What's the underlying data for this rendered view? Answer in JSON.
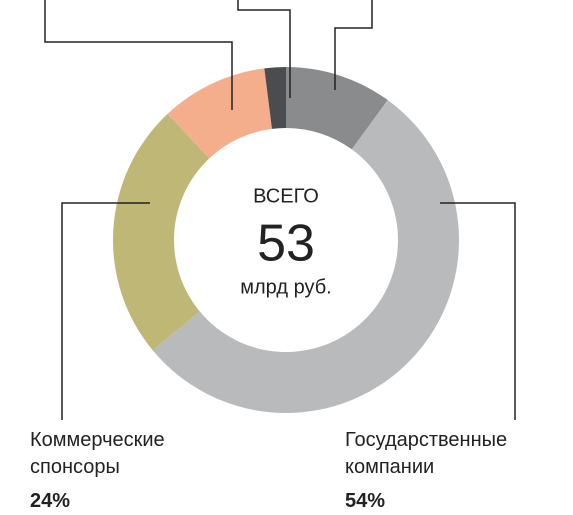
{
  "chart_data": {
    "type": "donut",
    "categories": [
      null,
      "Государственные компании",
      "Коммерческие спонсоры",
      null,
      null
    ],
    "values": [
      10,
      54,
      24,
      10,
      2
    ],
    "value_labels": [
      null,
      "54%",
      "24%",
      null,
      null
    ],
    "colors": [
      "#8a8b8d",
      "#b9babc",
      "#bfb776",
      "#f5ae8c",
      "#4a4c4f"
    ],
    "center_title": "ВСЕГО",
    "center_value": 53,
    "center_unit": "млрд руб."
  }
}
